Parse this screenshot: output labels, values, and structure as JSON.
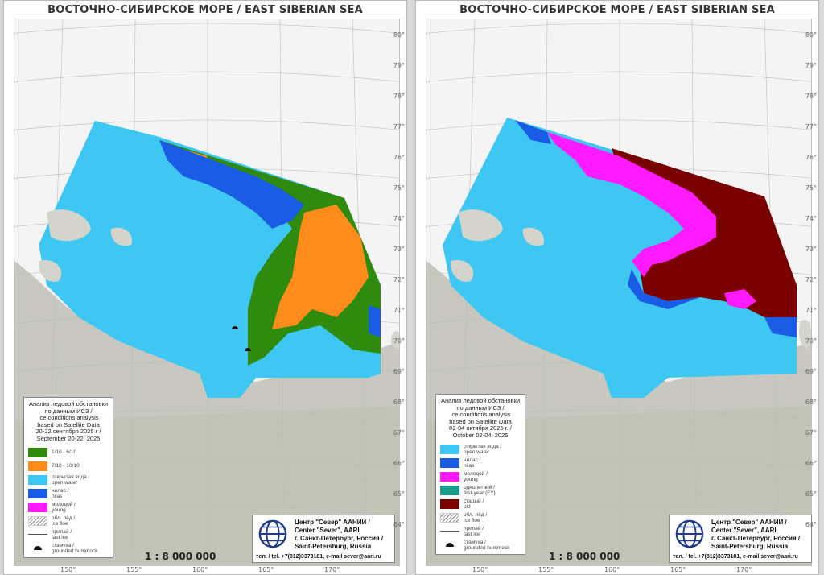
{
  "maps": [
    {
      "id": "left",
      "title": "ВОСТОЧНО-СИБИРСКОЕ МОРЕ / EAST SIBERIAN SEA",
      "legend": {
        "title_lines": [
          "Анализ ледовой обстановки",
          "по данным ИСЗ /",
          "Ice conditions analysis",
          "based on Satellite Data",
          "20-22 сентября 2025 г /",
          "September 20-22, 2025"
        ],
        "items": [
          {
            "swatch": "#2e8b0e",
            "label_lines": [
              "1/10 - 6/10"
            ]
          },
          {
            "swatch": "#ff8c1a",
            "label_lines": [
              "7/10 - 10/10"
            ]
          },
          {
            "swatch": "#3ec7f2",
            "label_lines": [
              "открытая вода /",
              "open water"
            ]
          },
          {
            "swatch": "#1a5ce6",
            "label_lines": [
              "нилас /",
              "nilas"
            ]
          },
          {
            "swatch": "#ff1aff",
            "label_lines": [
              "молодой /",
              "young"
            ]
          },
          {
            "swatch": "hatch",
            "label_lines": [
              "обл. лёд /",
              "ice floe"
            ]
          },
          {
            "swatch": "line",
            "label_lines": [
              "припай /",
              "fast ice"
            ]
          },
          {
            "swatch": "hummock",
            "label_lines": [
              "стамуха /",
              "grounded hummock"
            ]
          }
        ]
      },
      "scale": "1 : 8 000 000",
      "org_lines": [
        "Центр \"Север\" ААНИИ /",
        "Center \"Sever\", AARI",
        "г. Санкт-Петербург, Россия /",
        "Saint-Petersburg, Russia"
      ],
      "contact": "тел. / tel. +7(812)3373181, e-mail sever@aari.ru"
    },
    {
      "id": "right",
      "title": "ВОСТОЧНО-СИБИРСКОЕ МОРЕ / EAST SIBERIAN SEA",
      "legend": {
        "title_lines": [
          "Анализ ледовой обстановки",
          "по данным ИСЗ /",
          "Ice conditions analysis",
          "based on Satellite Data",
          "02-04 октября 2025 г. /",
          "October 02-04, 2025"
        ],
        "items": [
          {
            "swatch": "#3ec7f2",
            "label_lines": [
              "открытая вода /",
              "open water"
            ]
          },
          {
            "swatch": "#1a5ce6",
            "label_lines": [
              "нилас /",
              "nilas"
            ]
          },
          {
            "swatch": "#ff1aff",
            "label_lines": [
              "молодой /",
              "young"
            ]
          },
          {
            "swatch": "#1a9e8a",
            "label_lines": [
              "однолетний /",
              "first-year (FY)"
            ]
          },
          {
            "swatch": "#7a0000",
            "label_lines": [
              "старый /",
              "old"
            ]
          },
          {
            "swatch": "hatch",
            "label_lines": [
              "обл. лёд /",
              "ice floe"
            ]
          },
          {
            "swatch": "line",
            "label_lines": [
              "припай /",
              "fast ice"
            ]
          },
          {
            "swatch": "hummock",
            "label_lines": [
              "стамуха /",
              "grounded hummock"
            ]
          }
        ]
      },
      "scale": "1 : 8 000 000",
      "org_lines": [
        "Центр \"Север\" ААНИИ /",
        "Center \"Sever\", AARI",
        "г. Санкт-Петербург, Россия /",
        "Saint-Petersburg, Russia"
      ],
      "contact": "тел. / tel. +7(812)3373181, e-mail sever@aari.ru"
    }
  ],
  "lat_labels": [
    "80°",
    "79°",
    "78°",
    "77°",
    "76°",
    "75°",
    "74°",
    "73°",
    "72°",
    "71°",
    "70°",
    "69°",
    "68°",
    "67°",
    "66°",
    "65°",
    "64°"
  ],
  "lon_labels": [
    "150°",
    "155°",
    "160°",
    "165°",
    "170°"
  ],
  "colors": {
    "open_water": "#3ec7f2",
    "nilas": "#1a5ce6",
    "young": "#ff1aff",
    "old": "#7a0000",
    "conc_low": "#2e8b0e",
    "conc_high": "#ff8c1a",
    "land": "#c8c8c0",
    "globe": "#1f3a8a"
  }
}
